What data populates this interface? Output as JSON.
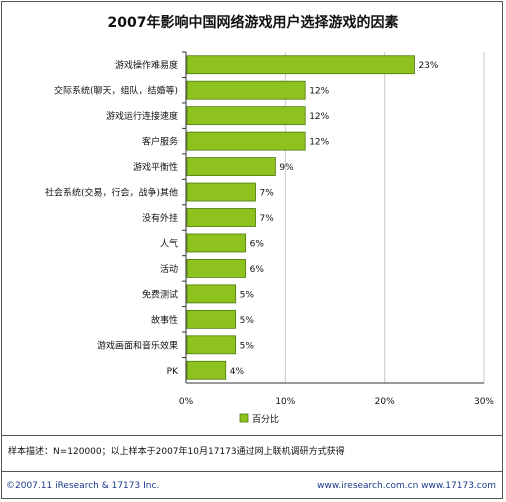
{
  "chart_data": {
    "type": "bar",
    "orientation": "horizontal",
    "title": "2007年影响中国网络游戏用户选择游戏的因素",
    "categories": [
      "游戏操作难易度",
      "交际系统(聊天，组队，结婚等)",
      "游戏运行连接速度",
      "客户服务",
      "游戏平衡性",
      "社会系统(交易，行会，战争)其他",
      "没有外挂",
      "人气",
      "活动",
      "免费测试",
      "故事性",
      "游戏画面和音乐效果",
      "PK"
    ],
    "series": [
      {
        "name": "百分比",
        "values": [
          23,
          12,
          12,
          12,
          9,
          7,
          7,
          6,
          6,
          5,
          5,
          5,
          4
        ],
        "value_labels": [
          "23%",
          "12%",
          "12%",
          "12%",
          "9%",
          "7%",
          "7%",
          "6%",
          "6%",
          "5%",
          "5%",
          "5%",
          "4%"
        ]
      }
    ],
    "xlim": [
      0,
      30
    ],
    "x_ticks": [
      "0%",
      "10%",
      "20%",
      "30%"
    ],
    "grid": true,
    "legend_position": "bottom",
    "bar_color": "#8dc21f"
  },
  "footer": {
    "note": "样本描述：N=120000；以上样本于2007年10月17173通过网上联机调研方式获得",
    "copyright": "©2007.11 iResearch & 17173 Inc.",
    "urls": "www.iresearch.com.cn  www.17173.com"
  }
}
